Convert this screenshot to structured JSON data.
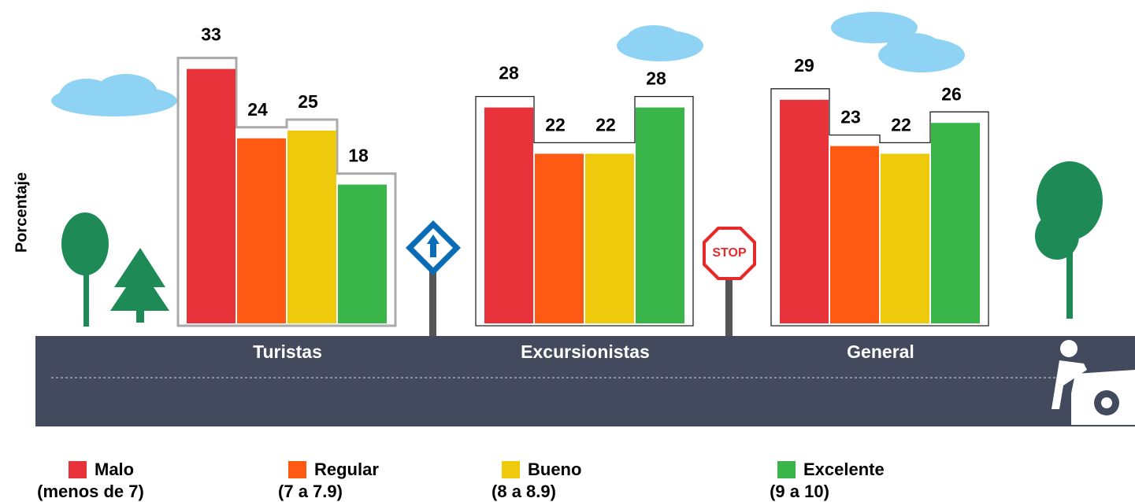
{
  "chart_data": {
    "type": "bar",
    "y_label": "Porcentaje",
    "categories": [
      "Turistas",
      "Excursionistas",
      "General"
    ],
    "series": [
      {
        "name": "Malo",
        "range": "(menos de 7)",
        "color": "#e8333a",
        "values": [
          33,
          28,
          29
        ]
      },
      {
        "name": "Regular",
        "range": "(7 a 7.9)",
        "color": "#fe5a14",
        "values": [
          24,
          22,
          23
        ]
      },
      {
        "name": "Bueno",
        "range": "(8 a 8.9)",
        "color": "#efc90c",
        "values": [
          25,
          22,
          22
        ]
      },
      {
        "name": "Excelente",
        "range": "(9 a 10)",
        "color": "#3ab54a",
        "values": [
          18,
          28,
          26
        ]
      }
    ]
  }
}
